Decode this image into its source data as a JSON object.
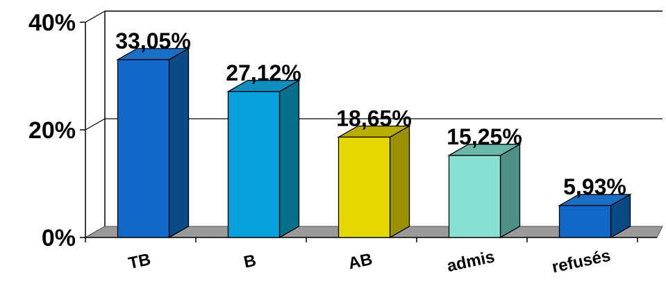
{
  "chart_data": {
    "type": "bar",
    "title": "",
    "xlabel": "",
    "ylabel": "",
    "categories": [
      "TB",
      "B",
      "AB",
      "admis",
      "refusés"
    ],
    "values": [
      33.05,
      27.12,
      18.65,
      15.25,
      5.93
    ],
    "value_labels": [
      "33,05%",
      "27,12%",
      "18,65%",
      "15,25%",
      "5,93%"
    ],
    "ylim": [
      0,
      40
    ],
    "y_ticks": [
      {
        "value": 0,
        "label": "0%"
      },
      {
        "value": 20,
        "label": "20%"
      },
      {
        "value": 40,
        "label": "40%"
      }
    ],
    "grid": true,
    "three_d": true,
    "bar_colors": [
      {
        "front": "#1268c8",
        "side": "#0a4a86",
        "top": "#1a6fc5"
      },
      {
        "front": "#06a0dd",
        "side": "#066f8c",
        "top": "#0d8fc0"
      },
      {
        "front": "#e4d800",
        "side": "#9a9000",
        "top": "#b8ae00"
      },
      {
        "front": "#88e0d2",
        "side": "#4f8f85",
        "top": "#6ab7aa"
      },
      {
        "front": "#1268c8",
        "side": "#0a4a86",
        "top": "#1a6fc5"
      }
    ],
    "floor_color": "#9a9a9a",
    "background_color": "#ffffff"
  }
}
